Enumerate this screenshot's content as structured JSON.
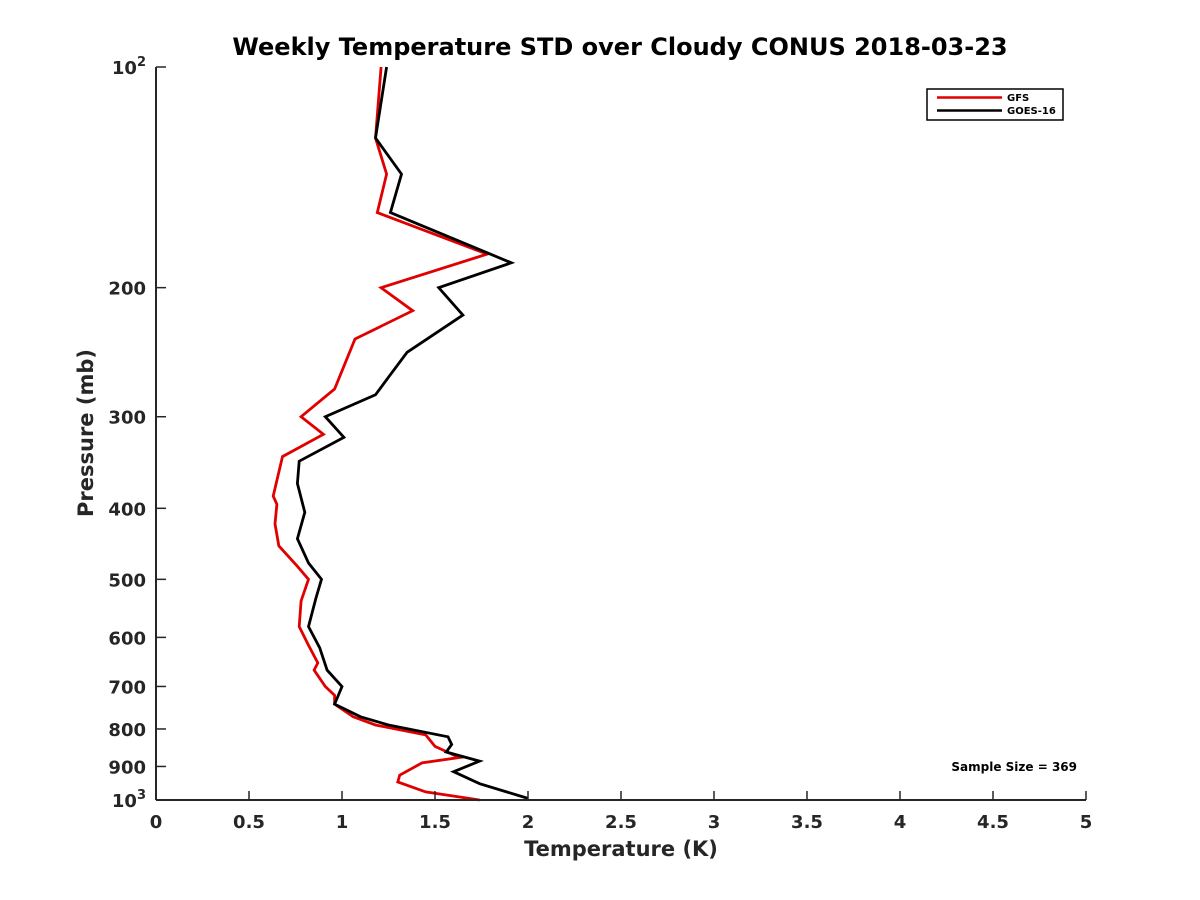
{
  "chart_data": {
    "type": "line",
    "title": "Weekly Temperature STD over Cloudy CONUS 2018-03-23",
    "xlabel": "Temperature (K)",
    "ylabel": "Pressure (mb)",
    "xlim": [
      0,
      5
    ],
    "ylim": [
      100,
      1000
    ],
    "y_scale": "log",
    "y_reversed": true,
    "grid": false,
    "x_ticks": [
      0,
      0.5,
      1,
      1.5,
      2,
      2.5,
      3,
      3.5,
      4,
      4.5,
      5
    ],
    "x_tick_labels": [
      "0",
      "0.5",
      "1",
      "1.5",
      "2",
      "2.5",
      "3",
      "3.5",
      "4",
      "4.5",
      "5"
    ],
    "y_ticks": [
      {
        "value": 100,
        "base": "10",
        "exp": "2"
      },
      {
        "value": 200,
        "label": "200"
      },
      {
        "value": 300,
        "label": "300"
      },
      {
        "value": 400,
        "label": "400"
      },
      {
        "value": 500,
        "label": "500"
      },
      {
        "value": 600,
        "label": "600"
      },
      {
        "value": 700,
        "label": "700"
      },
      {
        "value": 800,
        "label": "800"
      },
      {
        "value": 900,
        "label": "900"
      },
      {
        "value": 1000,
        "base": "10",
        "exp": "3"
      }
    ],
    "legend_position": "top-right",
    "annotation": "Sample Size = 369",
    "series": [
      {
        "name": "GFS",
        "color": "#e00000",
        "points": [
          [
            1.21,
            100
          ],
          [
            1.18,
            125
          ],
          [
            1.24,
            140
          ],
          [
            1.19,
            158
          ],
          [
            1.78,
            180
          ],
          [
            1.21,
            200
          ],
          [
            1.38,
            215
          ],
          [
            1.07,
            235
          ],
          [
            0.96,
            275
          ],
          [
            0.78,
            300
          ],
          [
            0.9,
            317
          ],
          [
            0.68,
            340
          ],
          [
            0.63,
            385
          ],
          [
            0.65,
            395
          ],
          [
            0.64,
            420
          ],
          [
            0.66,
            450
          ],
          [
            0.76,
            480
          ],
          [
            0.82,
            500
          ],
          [
            0.78,
            535
          ],
          [
            0.77,
            580
          ],
          [
            0.82,
            615
          ],
          [
            0.87,
            650
          ],
          [
            0.85,
            665
          ],
          [
            0.91,
            700
          ],
          [
            0.96,
            720
          ],
          [
            0.96,
            740
          ],
          [
            1.06,
            770
          ],
          [
            1.18,
            790
          ],
          [
            1.45,
            815
          ],
          [
            1.5,
            845
          ],
          [
            1.63,
            875
          ],
          [
            1.43,
            890
          ],
          [
            1.31,
            925
          ],
          [
            1.3,
            945
          ],
          [
            1.45,
            975
          ],
          [
            1.74,
            1000
          ]
        ]
      },
      {
        "name": "GOES-16",
        "color": "#000000",
        "points": [
          [
            1.24,
            100
          ],
          [
            1.18,
            125
          ],
          [
            1.32,
            140
          ],
          [
            1.26,
            158
          ],
          [
            1.91,
            185
          ],
          [
            1.52,
            200
          ],
          [
            1.65,
            218
          ],
          [
            1.35,
            245
          ],
          [
            1.25,
            265
          ],
          [
            1.18,
            280
          ],
          [
            0.91,
            300
          ],
          [
            1.01,
            320
          ],
          [
            0.77,
            345
          ],
          [
            0.76,
            370
          ],
          [
            0.8,
            405
          ],
          [
            0.76,
            440
          ],
          [
            0.82,
            475
          ],
          [
            0.89,
            500
          ],
          [
            0.86,
            530
          ],
          [
            0.82,
            580
          ],
          [
            0.88,
            620
          ],
          [
            0.92,
            665
          ],
          [
            1.0,
            700
          ],
          [
            0.98,
            720
          ],
          [
            0.96,
            740
          ],
          [
            1.1,
            770
          ],
          [
            1.25,
            790
          ],
          [
            1.57,
            820
          ],
          [
            1.59,
            840
          ],
          [
            1.56,
            860
          ],
          [
            1.74,
            885
          ],
          [
            1.6,
            915
          ],
          [
            1.74,
            950
          ],
          [
            2.0,
            995
          ]
        ]
      }
    ]
  }
}
